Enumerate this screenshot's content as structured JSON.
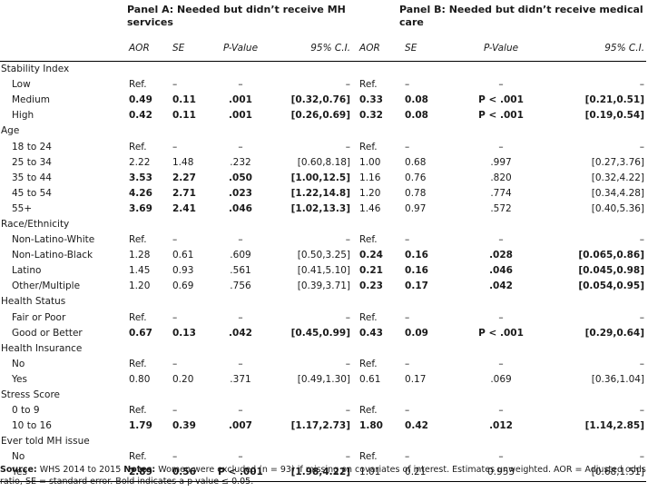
{
  "panels": {
    "a_title": "Panel A: Needed but didn’t receive MH services",
    "b_title": "Panel B: Needed but didn’t receive medical care"
  },
  "columns": {
    "aor": "AOR",
    "se": "SE",
    "p": "P-Value",
    "ci": "95% C.I."
  },
  "sections": [
    {
      "label": "Stability Index",
      "rows": [
        {
          "label": "Low",
          "a": [
            "Ref.",
            "–",
            "–",
            "–"
          ],
          "b": [
            "Ref.",
            "–",
            "–",
            "–"
          ],
          "bold_a": false,
          "bold_b": false
        },
        {
          "label": "Medium",
          "a": [
            "0.49",
            "0.11",
            ".001",
            "[0.32,0.76]"
          ],
          "b": [
            "0.33",
            "0.08",
            "P < .001",
            "[0.21,0.51]"
          ],
          "bold_a": true,
          "bold_b": true
        },
        {
          "label": "High",
          "a": [
            "0.42",
            "0.11",
            ".001",
            "[0.26,0.69]"
          ],
          "b": [
            "0.32",
            "0.08",
            "P < .001",
            "[0.19,0.54]"
          ],
          "bold_a": true,
          "bold_b": true
        }
      ]
    },
    {
      "label": "Age",
      "rows": [
        {
          "label": "18 to 24",
          "a": [
            "Ref.",
            "–",
            "–",
            "–"
          ],
          "b": [
            "Ref.",
            "–",
            "–",
            "–"
          ],
          "bold_a": false,
          "bold_b": false
        },
        {
          "label": "25 to 34",
          "a": [
            "2.22",
            "1.48",
            ".232",
            "[0.60,8.18]"
          ],
          "b": [
            "1.00",
            "0.68",
            ".997",
            "[0.27,3.76]"
          ],
          "bold_a": false,
          "bold_b": false
        },
        {
          "label": "35 to 44",
          "a": [
            "3.53",
            "2.27",
            ".050",
            "[1.00,12.5]"
          ],
          "b": [
            "1.16",
            "0.76",
            ".820",
            "[0.32,4.22]"
          ],
          "bold_a": true,
          "bold_b": false
        },
        {
          "label": "45 to 54",
          "a": [
            "4.26",
            "2.71",
            ".023",
            "[1.22,14.8]"
          ],
          "b": [
            "1.20",
            "0.78",
            ".774",
            "[0.34,4.28]"
          ],
          "bold_a": true,
          "bold_b": false
        },
        {
          "label": "55+",
          "a": [
            "3.69",
            "2.41",
            ".046",
            "[1.02,13.3]"
          ],
          "b": [
            "1.46",
            "0.97",
            ".572",
            "[0.40,5.36]"
          ],
          "bold_a": true,
          "bold_b": false
        }
      ]
    },
    {
      "label": "Race/Ethnicity",
      "rows": [
        {
          "label": "Non-Latino-White",
          "a": [
            "Ref.",
            "–",
            "–",
            "–"
          ],
          "b": [
            "Ref.",
            "–",
            "–",
            "–"
          ],
          "bold_a": false,
          "bold_b": false
        },
        {
          "label": "Non-Latino-Black",
          "a": [
            "1.28",
            "0.61",
            ".609",
            "[0.50,3.25]"
          ],
          "b": [
            "0.24",
            "0.16",
            ".028",
            "[0.065,0.86]"
          ],
          "bold_a": false,
          "bold_b": true
        },
        {
          "label": "Latino",
          "a": [
            "1.45",
            "0.93",
            ".561",
            "[0.41,5.10]"
          ],
          "b": [
            "0.21",
            "0.16",
            ".046",
            "[0.045,0.98]"
          ],
          "bold_a": false,
          "bold_b": true
        },
        {
          "label": "Other/Multiple",
          "a": [
            "1.20",
            "0.69",
            ".756",
            "[0.39,3.71]"
          ],
          "b": [
            "0.23",
            "0.17",
            ".042",
            "[0.054,0.95]"
          ],
          "bold_a": false,
          "bold_b": true
        }
      ]
    },
    {
      "label": "Health Status",
      "rows": [
        {
          "label": "Fair or Poor",
          "a": [
            "Ref.",
            "–",
            "–",
            "–"
          ],
          "b": [
            "Ref.",
            "–",
            "–",
            "–"
          ],
          "bold_a": false,
          "bold_b": false
        },
        {
          "label": "Good or Better",
          "a": [
            "0.67",
            "0.13",
            ".042",
            "[0.45,0.99]"
          ],
          "b": [
            "0.43",
            "0.09",
            "P < .001",
            "[0.29,0.64]"
          ],
          "bold_a": true,
          "bold_b": true
        }
      ]
    },
    {
      "label": "Health Insurance",
      "rows": [
        {
          "label": "No",
          "a": [
            "Ref.",
            "–",
            "–",
            "–"
          ],
          "b": [
            "Ref.",
            "–",
            "–",
            "–"
          ],
          "bold_a": false,
          "bold_b": false
        },
        {
          "label": "Yes",
          "a": [
            "0.80",
            "0.20",
            ".371",
            "[0.49,1.30]"
          ],
          "b": [
            "0.61",
            "0.17",
            ".069",
            "[0.36,1.04]"
          ],
          "bold_a": false,
          "bold_b": false
        }
      ]
    },
    {
      "label": "Stress Score",
      "rows": [
        {
          "label": "0 to 9",
          "a": [
            "Ref.",
            "–",
            "–",
            "–"
          ],
          "b": [
            "Ref.",
            "–",
            "–",
            "–"
          ],
          "bold_a": false,
          "bold_b": false
        },
        {
          "label": "10 to 16",
          "a": [
            "1.79",
            "0.39",
            ".007",
            "[1.17,2.73]"
          ],
          "b": [
            "1.80",
            "0.42",
            ".012",
            "[1.14,2.85]"
          ],
          "bold_a": true,
          "bold_b": true
        }
      ]
    },
    {
      "label": "Ever told MH issue",
      "rows": [
        {
          "label": "No",
          "a": [
            "Ref.",
            "–",
            "–",
            "–"
          ],
          "b": [
            "Ref.",
            "–",
            "–",
            "–"
          ],
          "bold_a": false,
          "bold_b": false
        },
        {
          "label": "Yes",
          "a": [
            "2.89",
            "0.56",
            "P < .001",
            "[1.98,4.22]"
          ],
          "b": [
            "1.01",
            "0.21",
            "0.953",
            "[0.68,1.51]"
          ],
          "bold_a": true,
          "bold_b": false
        }
      ]
    }
  ],
  "footnote": {
    "source_label": "Source:",
    "source_text": "WHS 2014 to 2015",
    "notes_label": "Notes:",
    "notes_text": "Women were excluded (n = 93) if missing on covariates of interest. Estimates unweighted. AOR = Adjusted odds ratio, SE = standard error. Bold indicates a p value ≤ 0.05."
  }
}
